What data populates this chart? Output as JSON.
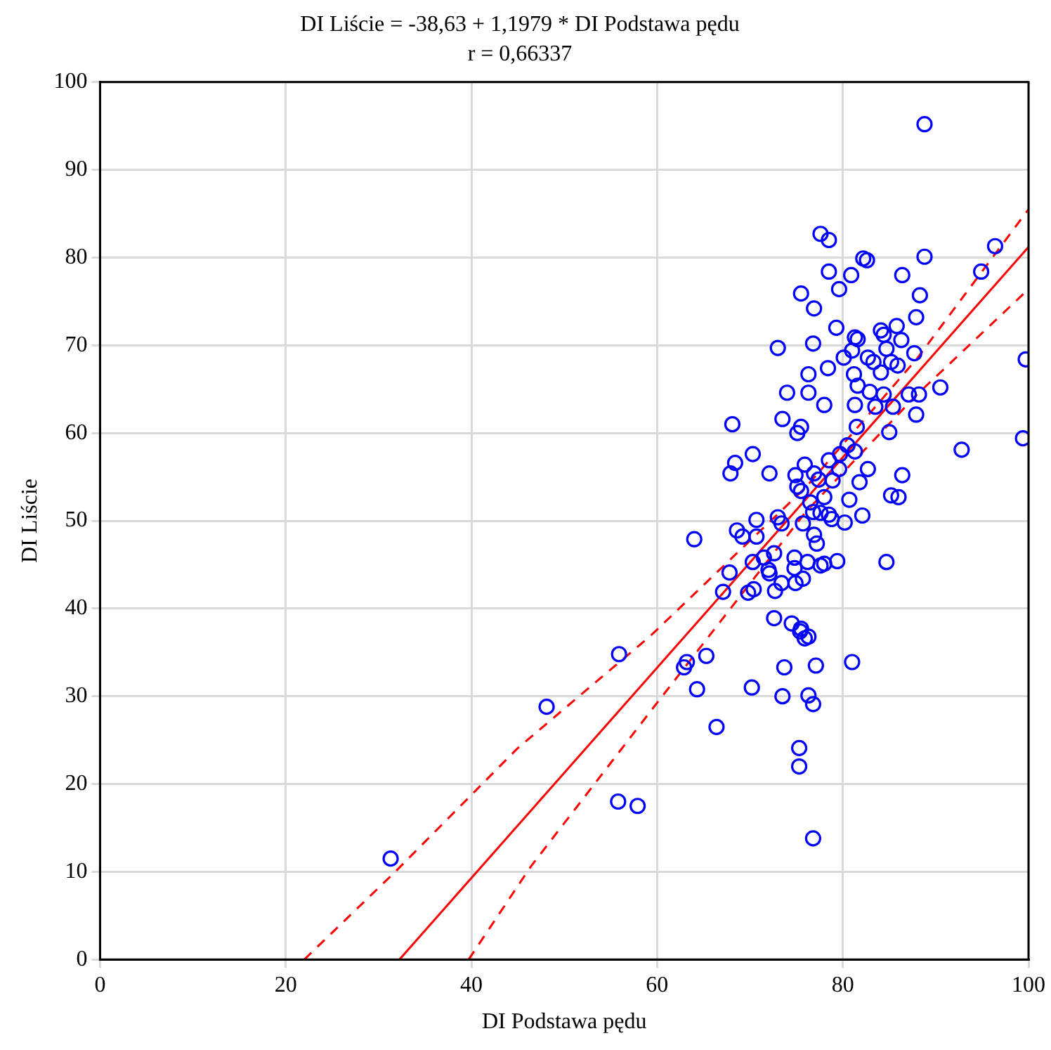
{
  "chart_data": {
    "type": "scatter",
    "title": "DI Liście = -38,63 + 1,1979 * DI Podstawa pędu",
    "subtitle": "r = 0,66337",
    "xlabel": "DI Podstawa pędu",
    "ylabel": "DI Liście",
    "xlim": [
      0,
      100
    ],
    "ylim": [
      0,
      100
    ],
    "xticks": [
      0,
      20,
      40,
      60,
      80,
      100
    ],
    "yticks": [
      0,
      10,
      20,
      30,
      40,
      50,
      60,
      70,
      80,
      90,
      100
    ],
    "grid": true,
    "legend": false,
    "series": [
      {
        "type": "scatter",
        "color": "#0000ff",
        "marker": "circle",
        "x": [
          31.3,
          48.1,
          55.9,
          65.3,
          63.2,
          62.9,
          73.7,
          77.1,
          81,
          64.3,
          70.2,
          73.5,
          76.3,
          76.8,
          66.4,
          75.3,
          75.3,
          76.8,
          55.8,
          57.9,
          88.8,
          77.6,
          78.5,
          96.4,
          88.8,
          82.2,
          82.6,
          78.5,
          80.9,
          86.4,
          94.9,
          79.6,
          75.5,
          76.9,
          88.3,
          87.9,
          79.3,
          84.1,
          85.8,
          73,
          76.8,
          81.3,
          81.6,
          84.4,
          84.7,
          86.3,
          87.7,
          80.1,
          81,
          82.7,
          83.3,
          85.2,
          76.3,
          78.4,
          81.2,
          84.1,
          85.9,
          99.7,
          74,
          76.3,
          81.6,
          82.9,
          84.4,
          87.1,
          88.2,
          90.5,
          78,
          81.3,
          83.5,
          85.4,
          87.9,
          68.1,
          73.5,
          75.5,
          75.1,
          81.5,
          80.5,
          85,
          99.4,
          92.8,
          70.3,
          79.7,
          78.5,
          81.3,
          75.9,
          76.9,
          79.6,
          82.7,
          86.4,
          68.4,
          67.9,
          72.1,
          74.9,
          75.5,
          75.1,
          77.4,
          78.9,
          81.8,
          78,
          76.5,
          76.8,
          80.7,
          85.2,
          86,
          70.7,
          73,
          73.4,
          75.7,
          77.6,
          78.8,
          78.5,
          82.1,
          68.6,
          64,
          69.2,
          76.9,
          77.2,
          80.2,
          70.7,
          72.6,
          71.5,
          70.3,
          74.8,
          74.8,
          76.2,
          77.6,
          78,
          79.4,
          84.7,
          67.8,
          72.1,
          73.4,
          74.9,
          75.7,
          72,
          67.1,
          69.8,
          70.4,
          72.7,
          72.6,
          74.5,
          75.4,
          75.9,
          75.5,
          76.3
        ],
        "values": [
          11.5,
          28.8,
          34.8,
          34.6,
          33.9,
          33.3,
          33.3,
          33.5,
          33.9,
          30.8,
          31,
          30,
          30.1,
          29.1,
          26.5,
          24.1,
          22,
          13.8,
          18,
          17.5,
          95.2,
          82.7,
          82,
          81.3,
          80.1,
          79.9,
          79.7,
          78.4,
          78,
          78,
          78.4,
          76.4,
          75.9,
          74.2,
          75.7,
          73.2,
          72,
          71.7,
          72.2,
          69.7,
          70.2,
          70.9,
          70.7,
          71.2,
          69.6,
          70.6,
          69.1,
          68.6,
          69.4,
          68.6,
          68.1,
          68.1,
          66.7,
          67.4,
          66.7,
          66.9,
          67.7,
          68.4,
          64.6,
          64.6,
          65.4,
          64.7,
          64.4,
          64.4,
          64.4,
          65.2,
          63.2,
          63.2,
          63,
          63,
          62.1,
          61,
          61.6,
          60.7,
          60,
          60.7,
          58.6,
          60.1,
          59.4,
          58.1,
          57.6,
          57.6,
          56.9,
          57.9,
          56.4,
          55.4,
          55.9,
          55.9,
          55.2,
          56.6,
          55.4,
          55.4,
          55.2,
          53.4,
          53.9,
          54.7,
          54.6,
          54.4,
          52.7,
          52.1,
          51,
          52.4,
          52.9,
          52.7,
          50.1,
          50.4,
          49.7,
          49.7,
          50.9,
          50.2,
          50.7,
          50.6,
          48.9,
          47.9,
          48.2,
          48.4,
          47.4,
          49.8,
          48.2,
          46.3,
          45.8,
          45.3,
          45.8,
          44.6,
          45.3,
          44.9,
          45.1,
          45.4,
          45.3,
          44.1,
          44,
          42.9,
          42.9,
          43.4,
          44.4,
          41.9,
          41.8,
          42.2,
          42,
          38.9,
          38.3,
          37.4,
          36.6,
          37.7,
          36.8
        ]
      },
      {
        "type": "line",
        "color": "#ff0000",
        "line_style": "solid",
        "marker": "none",
        "x": [
          32.25,
          100
        ],
        "values": [
          0,
          81.2
        ]
      },
      {
        "type": "line",
        "color": "#ff0000",
        "line_style": "dashed",
        "marker": "none",
        "x": [
          22,
          31.8,
          45,
          59.3,
          76,
          88,
          100
        ],
        "values": [
          0,
          10,
          24.1,
          36.9,
          53.8,
          68.5,
          85.5
        ]
      },
      {
        "type": "line",
        "color": "#ff0000",
        "line_style": "dashed",
        "marker": "none",
        "x": [
          39.7,
          46.4,
          59.3,
          76,
          88,
          100
        ],
        "values": [
          0,
          10.6,
          28.3,
          51,
          64.4,
          76.4
        ]
      }
    ]
  }
}
